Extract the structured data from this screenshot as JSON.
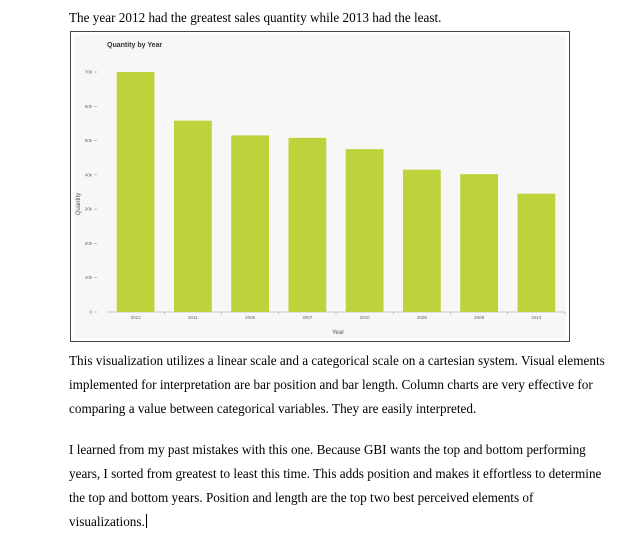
{
  "intro_text": "The year 2012 had the greatest sales quantity while 2013 had the least.",
  "paragraph_1": "This visualization utilizes a linear scale and a categorical scale on a cartesian system. Visual elements implemented for interpretation are bar position and bar length. Column charts are very effective for comparing a value between categorical variables. They are easily interpreted.",
  "paragraph_2": "I learned from my past mistakes with this one. Because GBI wants the top and bottom performing years, I sorted from greatest to least this time. This adds position and makes it effortless to determine the top and bottom years. Position and length are the top two best perceived elements of visualizations.",
  "chart_data": {
    "type": "bar",
    "title": "Quantity by Year",
    "xlabel": "Year",
    "ylabel": "Quantity",
    "categories": [
      "2012",
      "2011",
      "2006",
      "2007",
      "2010",
      "2008",
      "2009",
      "2013"
    ],
    "values": [
      70000,
      55800,
      51500,
      50800,
      47500,
      41500,
      40200,
      34500
    ],
    "ylim": [
      0,
      70000
    ],
    "yticks": [
      0,
      10000,
      20000,
      30000,
      40000,
      50000,
      60000,
      70000
    ],
    "ytick_labels": [
      "0",
      "10k",
      "20k",
      "30k",
      "40k",
      "50k",
      "60k",
      "70k"
    ],
    "bar_color": "#bed23b",
    "grid": false,
    "legend": "none"
  }
}
